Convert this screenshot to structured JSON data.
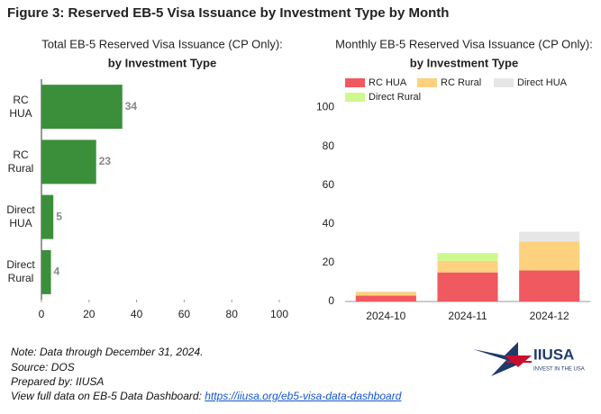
{
  "figure_title": "Figure 3: Reserved EB-5 Visa Issuance by Investment Type by Month",
  "chart_data": [
    {
      "type": "bar",
      "horizontal": true,
      "title": "Total EB-5 Reserved Visa Issuance (CP Only):",
      "subtitle": "by Investment Type",
      "categories": [
        "RC\nHUA",
        "RC\nRural",
        "Direct\nHUA",
        "Direct\nRural"
      ],
      "values": [
        34,
        23,
        5,
        4
      ],
      "color": "#3b8f3b",
      "xlim": [
        0,
        100
      ],
      "xticks": [
        0,
        20,
        40,
        60,
        80,
        100
      ]
    },
    {
      "type": "stacked_bar",
      "title": "Monthly EB-5 Reserved Visa Issuance (CP Only):",
      "subtitle": "by Investment Type",
      "categories": [
        "2024-10",
        "2024-11",
        "2024-12"
      ],
      "series": [
        {
          "name": "RC HUA",
          "color": "#f0595f",
          "values": [
            3,
            15,
            16
          ]
        },
        {
          "name": "RC Rural",
          "color": "#fdd17e",
          "values": [
            2,
            6,
            15
          ]
        },
        {
          "name": "Direct HUA",
          "color": "#e6e6e6",
          "values": [
            0,
            0,
            5
          ]
        },
        {
          "name": "Direct Rural",
          "color": "#ccfa8c",
          "values": [
            0,
            4,
            0
          ]
        }
      ],
      "ylim": [
        0,
        110
      ],
      "yticks": [
        0,
        20,
        40,
        60,
        80,
        100
      ]
    }
  ],
  "notes": [
    "Note: Data through December 31, 2024.",
    "Source: DOS",
    "Prepared by: IIUSA"
  ],
  "dashboard_text": "View full data on EB-5 Data Dashboard: ",
  "dashboard_url": "https://iiusa.org/eb5-visa-data-dashboard",
  "logo": {
    "name": "IIUSA",
    "tagline": "INVEST IN THE USA"
  }
}
